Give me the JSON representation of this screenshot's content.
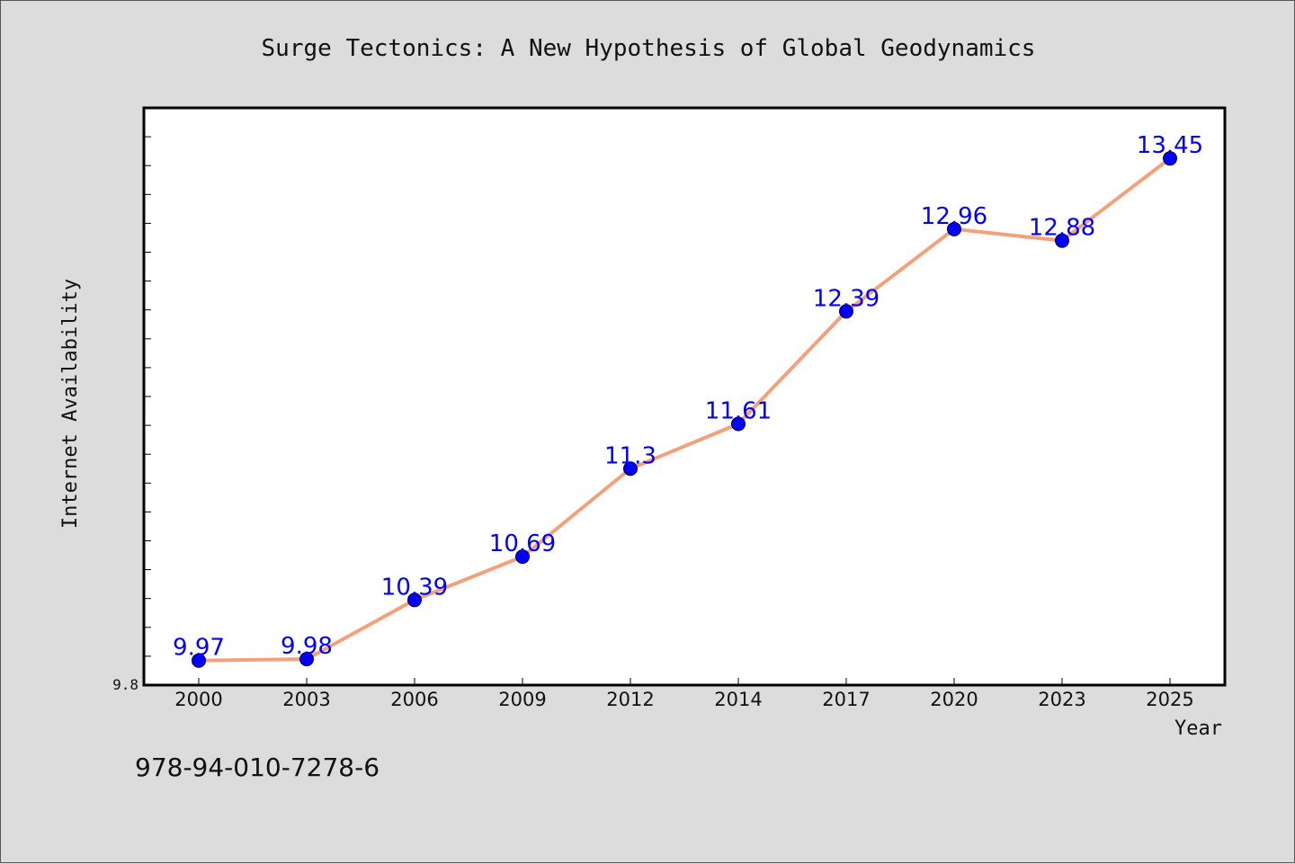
{
  "chart_data": {
    "type": "line",
    "title": "Surge Tectonics: A New Hypothesis of Global Geodynamics",
    "xlabel": "Year",
    "ylabel": "Internet Availability",
    "categories": [
      "2000",
      "2003",
      "2006",
      "2009",
      "2012",
      "2014",
      "2017",
      "2020",
      "2023",
      "2025"
    ],
    "values": [
      9.97,
      9.98,
      10.39,
      10.69,
      11.3,
      11.61,
      12.39,
      12.96,
      12.88,
      13.45
    ],
    "data_labels": [
      "9.97",
      "9.98",
      "10.39",
      "10.69",
      "11.3",
      "11.61",
      "12.39",
      "12.96",
      "12.88",
      "13.45"
    ],
    "ylim": [
      9.8,
      13.8
    ],
    "y_tick_labels": [
      "9.8"
    ],
    "grid": false,
    "legend": "none",
    "colors": {
      "line": "#f4a07a",
      "marker": "#0000ff",
      "data_label": "#0000ff",
      "plot_background": "#ffffff",
      "figure_background": "#dcdcdc"
    }
  },
  "footer": {
    "isbn": "978-94-010-7278-6"
  }
}
